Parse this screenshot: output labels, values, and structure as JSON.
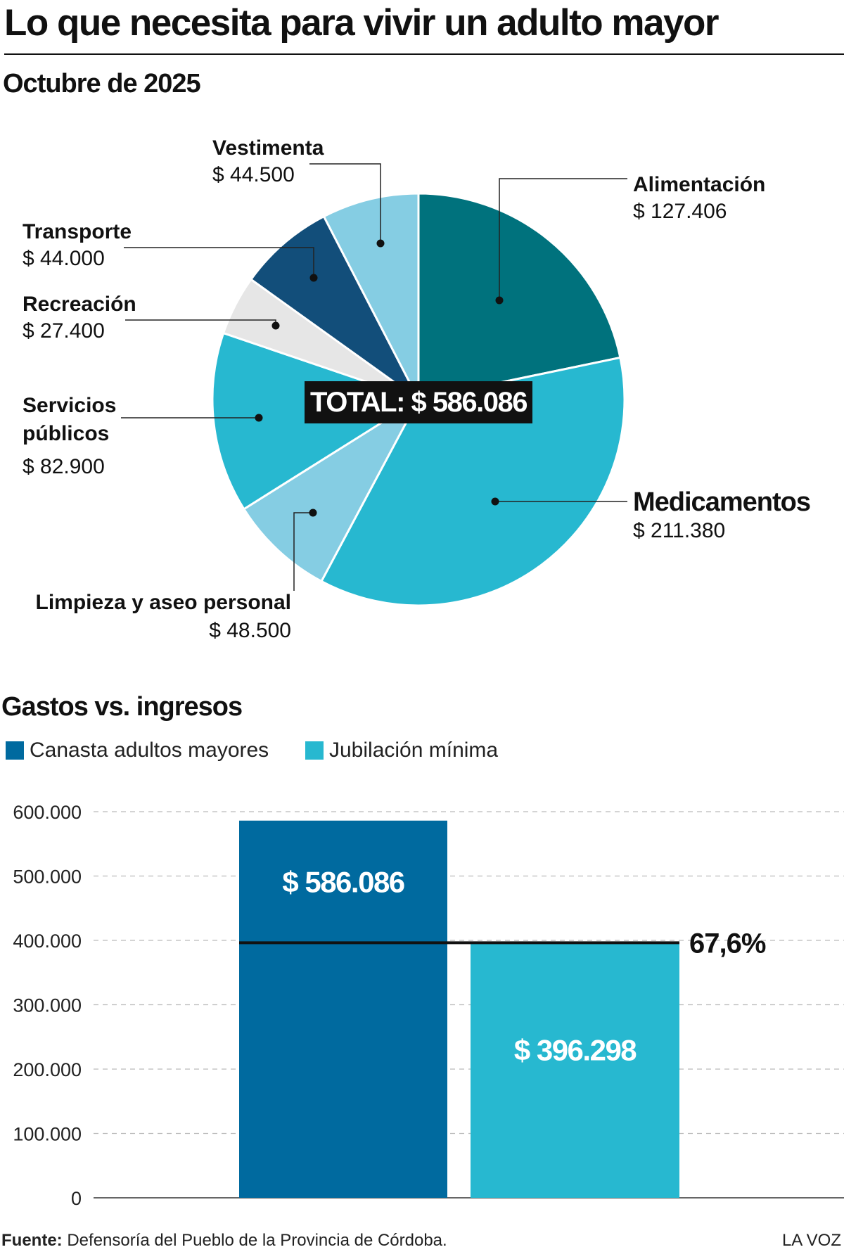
{
  "title": "Lo que necesita para vivir un adulto mayor",
  "footer": {
    "source_label": "Fuente:",
    "source_text": "Defensoría del Pueblo de la Provincia de Córdoba.",
    "brand": "LA VOZ"
  },
  "chart_data": [
    {
      "type": "pie",
      "title": "Octubre de 2025",
      "total_label": "TOTAL: $ 586.086",
      "slices": [
        {
          "name": "Alimentación",
          "value": 127406,
          "value_label": "$ 127.406",
          "color": "#00727D"
        },
        {
          "name": "Medicamentos",
          "value": 211380,
          "value_label": "$ 211.380",
          "color": "#27B8D0"
        },
        {
          "name": "Limpieza y aseo personal",
          "value": 48500,
          "value_label": "$ 48.500",
          "color": "#85CDE3"
        },
        {
          "name": "Servicios públicos",
          "value": 82900,
          "value_label": "$ 82.900",
          "color": "#27B8D0"
        },
        {
          "name": "Recreación",
          "value": 27400,
          "value_label": "$ 27.400",
          "color": "#E6E6E6"
        },
        {
          "name": "Transporte",
          "value": 44000,
          "value_label": "$ 44.000",
          "color": "#124E7A"
        },
        {
          "name": "Vestimenta",
          "value": 44500,
          "value_label": "$ 44.500",
          "color": "#85CDE3"
        }
      ]
    },
    {
      "type": "bar",
      "title": "Gastos vs. ingresos",
      "ylim": [
        0,
        600000
      ],
      "yticks": [
        0,
        100000,
        200000,
        300000,
        400000,
        500000,
        600000
      ],
      "ytick_labels": [
        "0",
        "100.000",
        "200.000",
        "300.000",
        "400.000",
        "500.000",
        "600.000"
      ],
      "grid": "horizontal dashed",
      "legend_position": "top-left",
      "series": [
        {
          "name": "Canasta adultos mayores",
          "value": 586086,
          "value_label": "$ 586.086",
          "color": "#006A9F"
        },
        {
          "name": "Jubilación mínima",
          "value": 396298,
          "value_label": "$ 396.298",
          "color": "#27B8D0"
        }
      ],
      "annotation": {
        "label": "67,6%",
        "at_value": 396298
      }
    }
  ]
}
